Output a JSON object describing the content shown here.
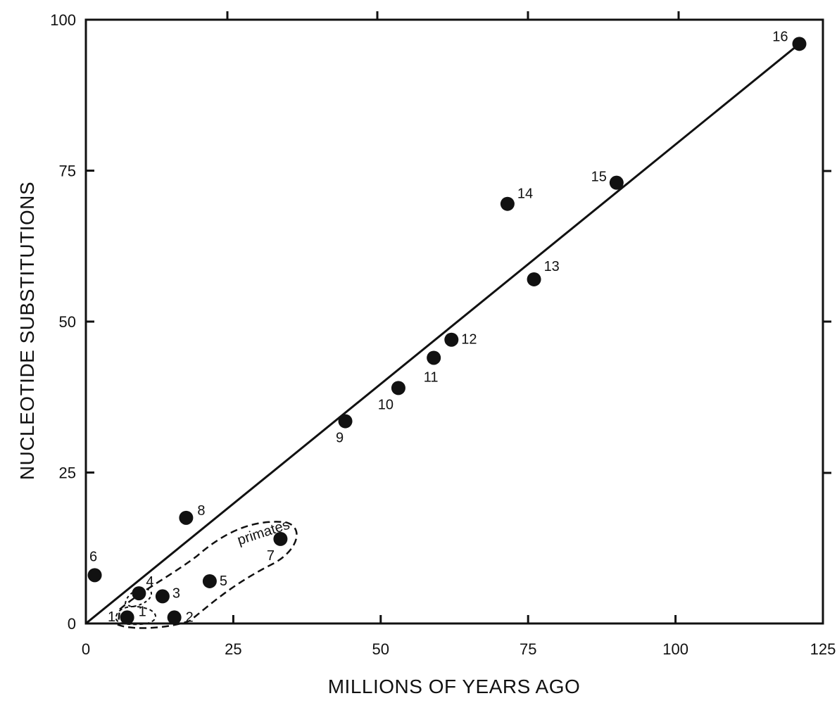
{
  "chart_data": {
    "type": "scatter",
    "title": "",
    "xlabel": "MILLIONS OF YEARS AGO",
    "ylabel": "NUCLEOTIDE SUBSTITUTIONS",
    "xlim": [
      0,
      125
    ],
    "ylim": [
      0,
      100
    ],
    "x_ticks": [
      0,
      25,
      50,
      75,
      100,
      125
    ],
    "y_ticks": [
      0,
      25,
      50,
      75,
      100
    ],
    "grid": false,
    "points": [
      {
        "label": "1",
        "x": 7,
        "y": 1
      },
      {
        "label": "2",
        "x": 15,
        "y": 1
      },
      {
        "label": "3",
        "x": 13,
        "y": 4.5
      },
      {
        "label": "4",
        "x": 9,
        "y": 5
      },
      {
        "label": "5",
        "x": 21,
        "y": 7
      },
      {
        "label": "6",
        "x": 1.5,
        "y": 8
      },
      {
        "label": "7",
        "x": 33,
        "y": 14
      },
      {
        "label": "8",
        "x": 17,
        "y": 17.5
      },
      {
        "label": "9",
        "x": 44,
        "y": 33.5
      },
      {
        "label": "10",
        "x": 53,
        "y": 39
      },
      {
        "label": "11",
        "x": 59,
        "y": 44
      },
      {
        "label": "12",
        "x": 62,
        "y": 47
      },
      {
        "label": "13",
        "x": 76,
        "y": 57
      },
      {
        "label": "14",
        "x": 71.5,
        "y": 69.5
      },
      {
        "label": "15",
        "x": 90,
        "y": 73
      },
      {
        "label": "16",
        "x": 121,
        "y": 96
      }
    ],
    "fit_line": {
      "x": [
        0,
        121
      ],
      "y": [
        0,
        96
      ]
    },
    "annotations": [
      {
        "text": "primates",
        "x": 26,
        "y": 13
      }
    ],
    "extra_label": "1"
  }
}
